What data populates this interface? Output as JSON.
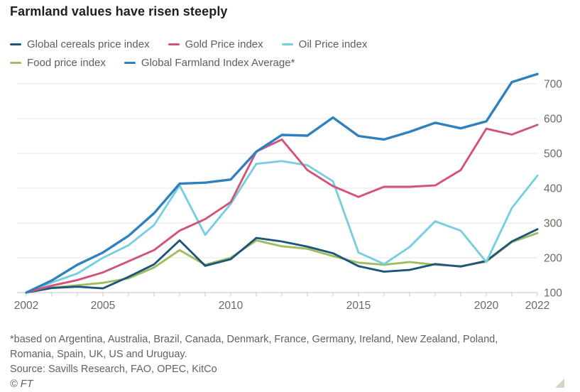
{
  "title": "Farmland values have risen steeply",
  "legend": {
    "items": [
      {
        "label": "Global cereals price index",
        "color": "#1c567a"
      },
      {
        "label": "Gold Price index",
        "color": "#d25379"
      },
      {
        "label": "Oil Price index",
        "color": "#76cfe0"
      },
      {
        "label": "Food price index",
        "color": "#9fbc5e"
      },
      {
        "label": "Global Farmland Index Average*",
        "color": "#2f80bd"
      }
    ]
  },
  "chart_data": {
    "type": "line",
    "title": "Farmland values have risen steeply",
    "x": [
      2002,
      2003,
      2004,
      2005,
      2006,
      2007,
      2008,
      2009,
      2010,
      2011,
      2012,
      2013,
      2014,
      2015,
      2016,
      2017,
      2018,
      2019,
      2020,
      2021,
      2022
    ],
    "series": [
      {
        "name": "Global cereals price index",
        "color": "#1c567a",
        "values": [
          100,
          113,
          117,
          112,
          145,
          181,
          250,
          177,
          196,
          257,
          247,
          232,
          213,
          176,
          160,
          165,
          182,
          175,
          191,
          247,
          282
        ]
      },
      {
        "name": "Gold Price index",
        "color": "#d25379",
        "values": [
          100,
          120,
          136,
          158,
          190,
          222,
          278,
          311,
          360,
          505,
          540,
          452,
          406,
          375,
          404,
          404,
          408,
          452,
          571,
          554,
          582
        ]
      },
      {
        "name": "Oil Price index",
        "color": "#76cfe0",
        "values": [
          100,
          129,
          155,
          200,
          236,
          294,
          408,
          266,
          355,
          470,
          478,
          466,
          420,
          215,
          182,
          231,
          305,
          278,
          188,
          343,
          436
        ]
      },
      {
        "name": "Food price index",
        "color": "#9fbc5e",
        "values": [
          100,
          114,
          121,
          128,
          141,
          172,
          222,
          180,
          200,
          250,
          233,
          226,
          205,
          186,
          180,
          188,
          180,
          176,
          189,
          245,
          271
        ]
      },
      {
        "name": "Global Farmland Index Average*",
        "color": "#2f80bd",
        "values": [
          100,
          135,
          180,
          215,
          263,
          328,
          413,
          416,
          425,
          505,
          553,
          551,
          603,
          550,
          540,
          562,
          588,
          572,
          592,
          705,
          728
        ]
      }
    ],
    "yticks": [
      100,
      200,
      300,
      400,
      500,
      600,
      700
    ],
    "ylim": [
      100,
      740
    ],
    "x_tick_labels": [
      2002,
      2005,
      2010,
      2015,
      2020,
      2022
    ],
    "grid": true,
    "legend_position": "top",
    "axis_label_color": "#6e6862",
    "gridline_color": "#e7e5e2",
    "baseline_color": "#c6c3bf"
  },
  "footer": {
    "note_line1": "*based on Argentina, Australia, Brazil, Canada, Denmark, France, Germany, Ireland, New Zealand, Poland,",
    "note_line2": "Romania, Spain, UK, US and Uruguay.",
    "source": "Source: Savills Research, FAO, OPEC, KitCo",
    "copyright": "© FT"
  }
}
